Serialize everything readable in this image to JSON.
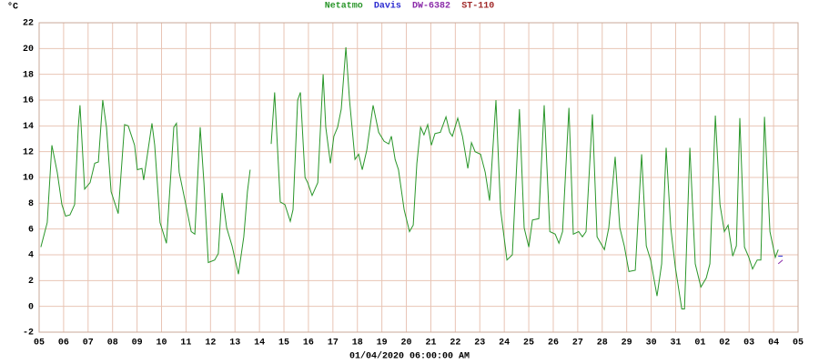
{
  "chart_data": {
    "type": "line",
    "unit": "°C",
    "xlabel": "01/04/2020 06:00:00 AM",
    "xlim": [
      0,
      31
    ],
    "ylim": [
      -2,
      22
    ],
    "yticks": [
      -2,
      0,
      2,
      4,
      6,
      8,
      10,
      12,
      14,
      16,
      18,
      20,
      22
    ],
    "xticks": [
      {
        "value": 0,
        "label": "05"
      },
      {
        "value": 1,
        "label": "06"
      },
      {
        "value": 2,
        "label": "07"
      },
      {
        "value": 3,
        "label": "08"
      },
      {
        "value": 4,
        "label": "09"
      },
      {
        "value": 5,
        "label": "10"
      },
      {
        "value": 6,
        "label": "11"
      },
      {
        "value": 7,
        "label": "12"
      },
      {
        "value": 8,
        "label": "13"
      },
      {
        "value": 9,
        "label": "14"
      },
      {
        "value": 10,
        "label": "15"
      },
      {
        "value": 11,
        "label": "16"
      },
      {
        "value": 12,
        "label": "17"
      },
      {
        "value": 13,
        "label": "18"
      },
      {
        "value": 14,
        "label": "19"
      },
      {
        "value": 15,
        "label": "20"
      },
      {
        "value": 16,
        "label": "21"
      },
      {
        "value": 17,
        "label": "22"
      },
      {
        "value": 18,
        "label": "23"
      },
      {
        "value": 19,
        "label": "24"
      },
      {
        "value": 20,
        "label": "25"
      },
      {
        "value": 21,
        "label": "26"
      },
      {
        "value": 22,
        "label": "27"
      },
      {
        "value": 23,
        "label": "28"
      },
      {
        "value": 24,
        "label": "29"
      },
      {
        "value": 25,
        "label": "30"
      },
      {
        "value": 26,
        "label": "31"
      },
      {
        "value": 27,
        "label": "01"
      },
      {
        "value": 28,
        "label": "02"
      },
      {
        "value": 29,
        "label": "03"
      },
      {
        "value": 30,
        "label": "04"
      },
      {
        "value": 31,
        "label": "05"
      }
    ],
    "grid": true,
    "series": [
      {
        "name": "Netatmo",
        "color": "#2a962a",
        "x": [
          0.07,
          0.33,
          0.52,
          0.74,
          0.93,
          1.08,
          1.26,
          1.45,
          1.6,
          1.67,
          1.86,
          2.08,
          2.27,
          2.42,
          2.6,
          2.75,
          2.94,
          3.23,
          3.49,
          3.64,
          3.9,
          4.01,
          4.2,
          4.27,
          4.61,
          4.72,
          4.94,
          5.2,
          5.5,
          5.61,
          5.72,
          5.99,
          6.21,
          6.36,
          6.58,
          6.73,
          6.91,
          7.17,
          7.32,
          7.47,
          7.66,
          7.88,
          8.14,
          8.36,
          8.51,
          8.62,
          9.0,
          9.48,
          9.62,
          9.85,
          10.04,
          10.26,
          10.37,
          10.56,
          10.67,
          10.86,
          10.97,
          11.15,
          11.38,
          11.6,
          11.71,
          11.9,
          12.04,
          12.19,
          12.34,
          12.53,
          12.68,
          12.9,
          13.05,
          13.2,
          13.38,
          13.64,
          13.87,
          14.09,
          14.28,
          14.39,
          14.54,
          14.68,
          14.91,
          15.13,
          15.28,
          15.43,
          15.58,
          15.72,
          15.87,
          16.02,
          16.17,
          16.39,
          16.62,
          16.77,
          16.88,
          17.1,
          17.29,
          17.51,
          17.66,
          17.81,
          18.03,
          18.22,
          18.4,
          18.66,
          18.85,
          19.11,
          19.33,
          19.62,
          19.81,
          20.0,
          20.15,
          20.41,
          20.63,
          20.86,
          21.08,
          21.23,
          21.38,
          21.64,
          21.82,
          22.04,
          22.19,
          22.34,
          22.6,
          22.79,
          23.09,
          23.27,
          23.53,
          23.72,
          23.9,
          24.09,
          24.35,
          24.61,
          24.8,
          24.98,
          25.24,
          25.43,
          25.61,
          25.8,
          25.99,
          26.25,
          26.36,
          26.58,
          26.8,
          27.03,
          27.25,
          27.4,
          27.62,
          27.81,
          27.99,
          28.14,
          28.33,
          28.48,
          28.62,
          28.81,
          28.99,
          29.14,
          29.33,
          29.48,
          29.63,
          29.85,
          30.07,
          30.19
        ],
        "values": [
          4.6,
          6.5,
          12.5,
          10.4,
          7.9,
          7.0,
          7.1,
          7.9,
          13.9,
          15.6,
          9.1,
          9.6,
          11.1,
          11.2,
          16.0,
          13.9,
          8.9,
          7.2,
          14.1,
          14.0,
          12.5,
          10.6,
          10.7,
          9.8,
          14.2,
          12.5,
          6.5,
          4.9,
          13.9,
          14.2,
          10.4,
          7.9,
          5.8,
          5.6,
          13.9,
          9.6,
          3.4,
          3.6,
          4.1,
          8.8,
          6.1,
          4.7,
          2.5,
          5.4,
          8.9,
          10.6,
          null,
          12.6,
          16.6,
          8.1,
          7.9,
          6.6,
          7.5,
          16.0,
          16.6,
          10.0,
          9.6,
          8.6,
          9.6,
          18.0,
          13.9,
          11.1,
          13.2,
          13.9,
          15.3,
          20.1,
          16.0,
          11.4,
          11.8,
          10.6,
          12.1,
          15.6,
          13.5,
          12.8,
          12.6,
          13.2,
          11.4,
          10.6,
          7.5,
          5.8,
          6.3,
          11.1,
          13.9,
          13.3,
          14.1,
          12.5,
          13.4,
          13.5,
          14.7,
          13.5,
          13.2,
          14.6,
          13.2,
          10.7,
          12.7,
          12.0,
          11.8,
          10.4,
          8.2,
          16.0,
          7.5,
          3.6,
          4.0,
          15.3,
          6.1,
          4.6,
          6.7,
          6.8,
          15.6,
          5.8,
          5.6,
          4.9,
          5.8,
          15.4,
          5.6,
          5.8,
          5.4,
          5.8,
          14.9,
          5.4,
          4.4,
          6.1,
          11.6,
          6.1,
          4.7,
          2.7,
          2.8,
          11.8,
          4.7,
          3.6,
          0.8,
          3.3,
          12.3,
          6.1,
          3.0,
          -0.2,
          -0.2,
          12.3,
          3.3,
          1.5,
          2.2,
          3.3,
          14.8,
          7.9,
          5.8,
          6.3,
          3.9,
          4.7,
          14.6,
          4.6,
          3.8,
          2.9,
          3.6,
          3.6,
          14.7,
          5.8,
          3.8,
          4.4
        ]
      },
      {
        "name": "Davis",
        "color": "#2b2bd0",
        "x": [
          30.19,
          30.37
        ],
        "values": [
          3.9,
          3.9
        ]
      },
      {
        "name": "DW-6382",
        "color": "#8a2aa8",
        "x": [
          30.19,
          30.37
        ],
        "values": [
          3.3,
          3.6
        ]
      },
      {
        "name": "ST-110",
        "color": "#a02828",
        "x": [
          30.19,
          30.37
        ],
        "values": [
          null,
          null
        ]
      }
    ]
  }
}
